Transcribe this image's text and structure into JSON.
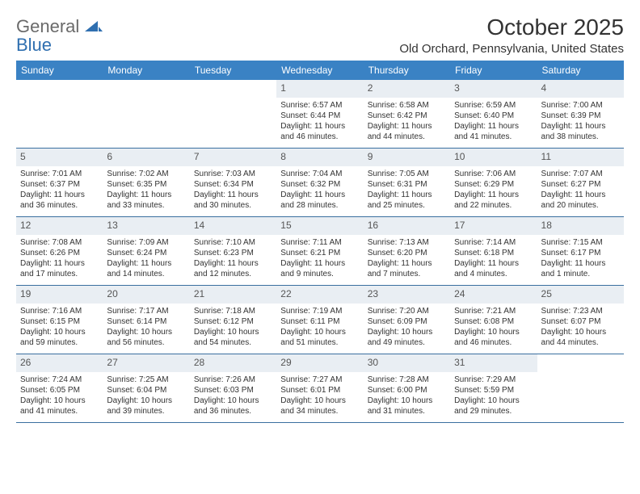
{
  "logo": {
    "text1": "General",
    "text2": "Blue",
    "mark_color": "#2f6fb0",
    "text1_color": "#6a6a6a",
    "text2_color": "#2f6fb0"
  },
  "header": {
    "month_title": "October 2025",
    "location": "Old Orchard, Pennsylvania, United States"
  },
  "colors": {
    "dow_bg": "#3a82c4",
    "dow_fg": "#ffffff",
    "row_border": "#3a6fa0",
    "shaded_bg": "#e9eef3",
    "cell_bg": "#ffffff",
    "text": "#333333"
  },
  "dow": [
    "Sunday",
    "Monday",
    "Tuesday",
    "Wednesday",
    "Thursday",
    "Friday",
    "Saturday"
  ],
  "weeks": [
    [
      {
        "day": "",
        "sunrise": "",
        "sunset": "",
        "daylight": ""
      },
      {
        "day": "",
        "sunrise": "",
        "sunset": "",
        "daylight": ""
      },
      {
        "day": "",
        "sunrise": "",
        "sunset": "",
        "daylight": ""
      },
      {
        "day": "1",
        "sunrise": "Sunrise: 6:57 AM",
        "sunset": "Sunset: 6:44 PM",
        "daylight": "Daylight: 11 hours and 46 minutes."
      },
      {
        "day": "2",
        "sunrise": "Sunrise: 6:58 AM",
        "sunset": "Sunset: 6:42 PM",
        "daylight": "Daylight: 11 hours and 44 minutes."
      },
      {
        "day": "3",
        "sunrise": "Sunrise: 6:59 AM",
        "sunset": "Sunset: 6:40 PM",
        "daylight": "Daylight: 11 hours and 41 minutes."
      },
      {
        "day": "4",
        "sunrise": "Sunrise: 7:00 AM",
        "sunset": "Sunset: 6:39 PM",
        "daylight": "Daylight: 11 hours and 38 minutes."
      }
    ],
    [
      {
        "day": "5",
        "sunrise": "Sunrise: 7:01 AM",
        "sunset": "Sunset: 6:37 PM",
        "daylight": "Daylight: 11 hours and 36 minutes."
      },
      {
        "day": "6",
        "sunrise": "Sunrise: 7:02 AM",
        "sunset": "Sunset: 6:35 PM",
        "daylight": "Daylight: 11 hours and 33 minutes."
      },
      {
        "day": "7",
        "sunrise": "Sunrise: 7:03 AM",
        "sunset": "Sunset: 6:34 PM",
        "daylight": "Daylight: 11 hours and 30 minutes."
      },
      {
        "day": "8",
        "sunrise": "Sunrise: 7:04 AM",
        "sunset": "Sunset: 6:32 PM",
        "daylight": "Daylight: 11 hours and 28 minutes."
      },
      {
        "day": "9",
        "sunrise": "Sunrise: 7:05 AM",
        "sunset": "Sunset: 6:31 PM",
        "daylight": "Daylight: 11 hours and 25 minutes."
      },
      {
        "day": "10",
        "sunrise": "Sunrise: 7:06 AM",
        "sunset": "Sunset: 6:29 PM",
        "daylight": "Daylight: 11 hours and 22 minutes."
      },
      {
        "day": "11",
        "sunrise": "Sunrise: 7:07 AM",
        "sunset": "Sunset: 6:27 PM",
        "daylight": "Daylight: 11 hours and 20 minutes."
      }
    ],
    [
      {
        "day": "12",
        "sunrise": "Sunrise: 7:08 AM",
        "sunset": "Sunset: 6:26 PM",
        "daylight": "Daylight: 11 hours and 17 minutes."
      },
      {
        "day": "13",
        "sunrise": "Sunrise: 7:09 AM",
        "sunset": "Sunset: 6:24 PM",
        "daylight": "Daylight: 11 hours and 14 minutes."
      },
      {
        "day": "14",
        "sunrise": "Sunrise: 7:10 AM",
        "sunset": "Sunset: 6:23 PM",
        "daylight": "Daylight: 11 hours and 12 minutes."
      },
      {
        "day": "15",
        "sunrise": "Sunrise: 7:11 AM",
        "sunset": "Sunset: 6:21 PM",
        "daylight": "Daylight: 11 hours and 9 minutes."
      },
      {
        "day": "16",
        "sunrise": "Sunrise: 7:13 AM",
        "sunset": "Sunset: 6:20 PM",
        "daylight": "Daylight: 11 hours and 7 minutes."
      },
      {
        "day": "17",
        "sunrise": "Sunrise: 7:14 AM",
        "sunset": "Sunset: 6:18 PM",
        "daylight": "Daylight: 11 hours and 4 minutes."
      },
      {
        "day": "18",
        "sunrise": "Sunrise: 7:15 AM",
        "sunset": "Sunset: 6:17 PM",
        "daylight": "Daylight: 11 hours and 1 minute."
      }
    ],
    [
      {
        "day": "19",
        "sunrise": "Sunrise: 7:16 AM",
        "sunset": "Sunset: 6:15 PM",
        "daylight": "Daylight: 10 hours and 59 minutes."
      },
      {
        "day": "20",
        "sunrise": "Sunrise: 7:17 AM",
        "sunset": "Sunset: 6:14 PM",
        "daylight": "Daylight: 10 hours and 56 minutes."
      },
      {
        "day": "21",
        "sunrise": "Sunrise: 7:18 AM",
        "sunset": "Sunset: 6:12 PM",
        "daylight": "Daylight: 10 hours and 54 minutes."
      },
      {
        "day": "22",
        "sunrise": "Sunrise: 7:19 AM",
        "sunset": "Sunset: 6:11 PM",
        "daylight": "Daylight: 10 hours and 51 minutes."
      },
      {
        "day": "23",
        "sunrise": "Sunrise: 7:20 AM",
        "sunset": "Sunset: 6:09 PM",
        "daylight": "Daylight: 10 hours and 49 minutes."
      },
      {
        "day": "24",
        "sunrise": "Sunrise: 7:21 AM",
        "sunset": "Sunset: 6:08 PM",
        "daylight": "Daylight: 10 hours and 46 minutes."
      },
      {
        "day": "25",
        "sunrise": "Sunrise: 7:23 AM",
        "sunset": "Sunset: 6:07 PM",
        "daylight": "Daylight: 10 hours and 44 minutes."
      }
    ],
    [
      {
        "day": "26",
        "sunrise": "Sunrise: 7:24 AM",
        "sunset": "Sunset: 6:05 PM",
        "daylight": "Daylight: 10 hours and 41 minutes."
      },
      {
        "day": "27",
        "sunrise": "Sunrise: 7:25 AM",
        "sunset": "Sunset: 6:04 PM",
        "daylight": "Daylight: 10 hours and 39 minutes."
      },
      {
        "day": "28",
        "sunrise": "Sunrise: 7:26 AM",
        "sunset": "Sunset: 6:03 PM",
        "daylight": "Daylight: 10 hours and 36 minutes."
      },
      {
        "day": "29",
        "sunrise": "Sunrise: 7:27 AM",
        "sunset": "Sunset: 6:01 PM",
        "daylight": "Daylight: 10 hours and 34 minutes."
      },
      {
        "day": "30",
        "sunrise": "Sunrise: 7:28 AM",
        "sunset": "Sunset: 6:00 PM",
        "daylight": "Daylight: 10 hours and 31 minutes."
      },
      {
        "day": "31",
        "sunrise": "Sunrise: 7:29 AM",
        "sunset": "Sunset: 5:59 PM",
        "daylight": "Daylight: 10 hours and 29 minutes."
      },
      {
        "day": "",
        "sunrise": "",
        "sunset": "",
        "daylight": ""
      }
    ]
  ]
}
